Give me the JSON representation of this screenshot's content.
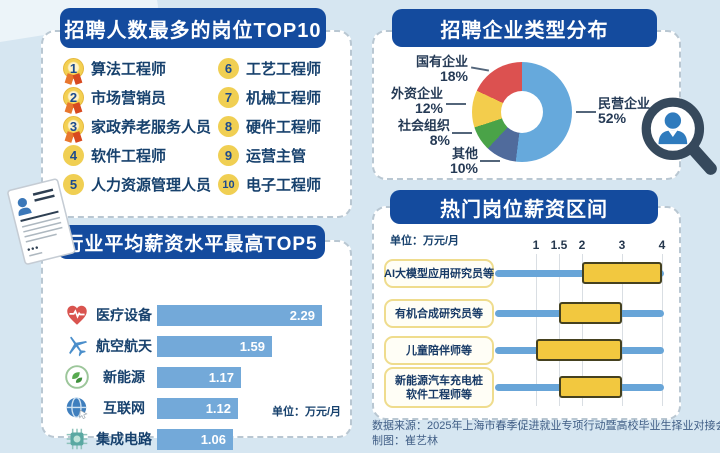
{
  "footer": {
    "source": "数据来源：2025年上海市春季促进就业专项行动暨高校毕业生择业对接会",
    "credit": "制图：崔艺林"
  },
  "chart_data": [
    {
      "id": "top_positions",
      "type": "table",
      "title": "招聘人数最多的岗位TOP10",
      "items": [
        {
          "rank": "1",
          "label": "算法工程师"
        },
        {
          "rank": "2",
          "label": "市场营销员"
        },
        {
          "rank": "3",
          "label": "家政养老服务人员"
        },
        {
          "rank": "4",
          "label": "软件工程师"
        },
        {
          "rank": "5",
          "label": "人力资源管理人员"
        },
        {
          "rank": "6",
          "label": "工艺工程师"
        },
        {
          "rank": "7",
          "label": "机械工程师"
        },
        {
          "rank": "8",
          "label": "硬件工程师"
        },
        {
          "rank": "9",
          "label": "运营主管"
        },
        {
          "rank": "10",
          "label": "电子工程师"
        }
      ]
    },
    {
      "id": "enterprise_types",
      "type": "pie",
      "title": "招聘企业类型分布",
      "donut": true,
      "start_angle_deg": 0,
      "clockwise": true,
      "segments": [
        {
          "label": "民营企业",
          "value": 52,
          "value_text": "52%",
          "color": "#66a9dc"
        },
        {
          "label": "其他",
          "value": 10,
          "value_text": "10%",
          "color": "#506b9c"
        },
        {
          "label": "社会组织",
          "value": 8,
          "value_text": "8%",
          "color": "#4aa348"
        },
        {
          "label": "外资企业",
          "value": 12,
          "value_text": "12%",
          "color": "#f3cd4c"
        },
        {
          "label": "国有企业",
          "value": 18,
          "value_text": "18%",
          "color": "#dc5150"
        }
      ]
    },
    {
      "id": "industry_salary",
      "type": "bar",
      "orientation": "horizontal",
      "title": "行业平均薪资水平最高TOP5",
      "unit": "单位：万元/月",
      "bar_color": "#73a9d9",
      "xlim": [
        0,
        2.29
      ],
      "rows": [
        {
          "label": "医疗设备",
          "value": 2.29,
          "value_text": "2.29",
          "icon": "heart-pulse-icon"
        },
        {
          "label": "航空航天",
          "value": 1.59,
          "value_text": "1.59",
          "icon": "airplane-icon"
        },
        {
          "label": "新能源",
          "value": 1.17,
          "value_text": "1.17",
          "icon": "leaf-icon"
        },
        {
          "label": "互联网",
          "value": 1.12,
          "value_text": "1.12",
          "icon": "globe-icon"
        },
        {
          "label": "集成电路",
          "value": 1.06,
          "value_text": "1.06",
          "icon": "chip-icon"
        }
      ]
    },
    {
      "id": "salary_ranges",
      "type": "bar",
      "subtype": "range",
      "title": "热门岗位薪资区间",
      "unit": "单位：万元/月",
      "axis_ticks": [
        "1",
        "1.5",
        "2",
        "3",
        "4"
      ],
      "axis_tick_values": [
        1,
        1.5,
        2,
        3,
        4
      ],
      "line_color": "#68a5d8",
      "box_color": "#f2c83f",
      "rows": [
        {
          "label": "AI大模型应用研究员等",
          "min": 2,
          "max": 4
        },
        {
          "label": "有机合成研究员等",
          "min": 1.5,
          "max": 3
        },
        {
          "label": "儿童陪伴师等",
          "min": 1,
          "max": 3
        },
        {
          "label": "新能源汽车充电桩",
          "label2": "软件工程师等",
          "min": 1.5,
          "max": 3
        }
      ]
    }
  ]
}
